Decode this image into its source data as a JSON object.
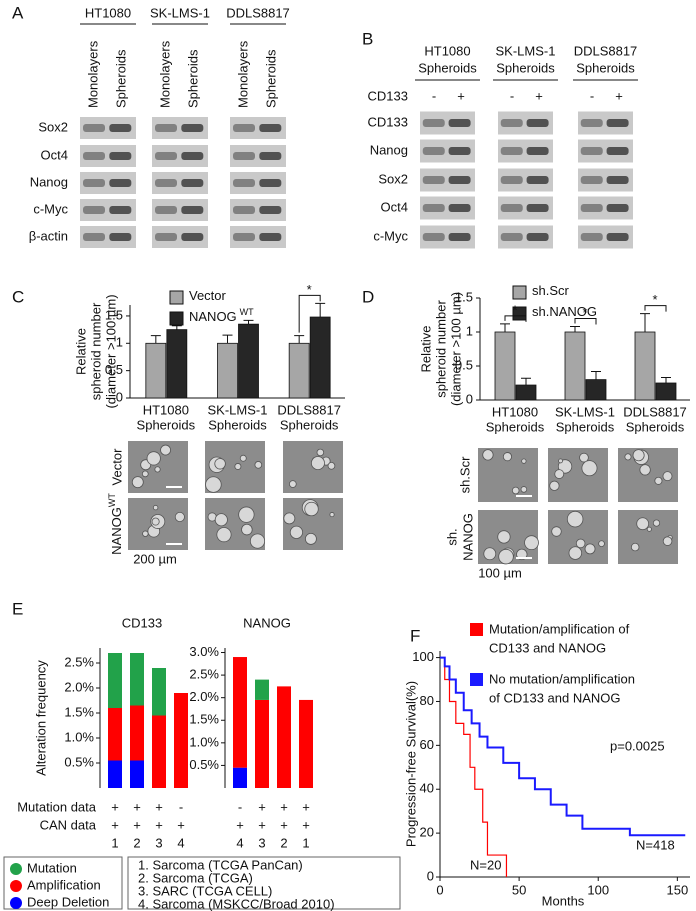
{
  "panel_a": {
    "label": "A",
    "groups": [
      "HT1080",
      "SK-LMS-1",
      "DDLS8817"
    ],
    "columns": [
      "Monolayers",
      "Spheroids"
    ],
    "rows": [
      "Sox2",
      "Oct4",
      "Nanog",
      "c-Myc",
      "β-actin"
    ]
  },
  "panel_b": {
    "label": "B",
    "groups": [
      [
        "HT1080",
        "Spheroids"
      ],
      [
        "SK-LMS-1",
        "Spheroids"
      ],
      [
        "DDLS8817",
        "Spheroids"
      ]
    ],
    "condition": "CD133",
    "condition_levels": [
      "-",
      "+"
    ],
    "rows": [
      "CD133",
      "Nanog",
      "Sox2",
      "Oct4",
      "c-Myc"
    ]
  },
  "panel_c": {
    "label": "C",
    "type": "bar",
    "y_label": [
      "Relative",
      "spheroid number",
      "(diameter >100 µm)"
    ],
    "categories": [
      [
        "HT1080",
        "Spheroids"
      ],
      [
        "SK-LMS-1",
        "Spheroids"
      ],
      [
        "DDLS8817",
        "Spheroids"
      ]
    ],
    "series": [
      {
        "name": "Vector",
        "color": "#a6a6a6",
        "values": [
          1,
          1,
          1
        ],
        "errors": [
          0.14,
          0.15,
          0.14
        ]
      },
      {
        "name": "NANOG",
        "name_sup": "WT",
        "color": "#262626",
        "values": [
          1.25,
          1.35,
          1.48
        ],
        "errors": [
          0.07,
          0.07,
          0.25
        ]
      }
    ],
    "ylim": [
      0,
      1.7
    ],
    "yticks": [
      0,
      0.5,
      1,
      1.5
    ],
    "significance": [
      null,
      null,
      "*"
    ],
    "image_rows": [
      {
        "text": "Vector"
      },
      {
        "text": "NANOG",
        "sup": "WT"
      }
    ],
    "scale_bar": "200 µm"
  },
  "panel_d": {
    "label": "D",
    "type": "bar",
    "y_label": [
      "Relative",
      "spheroid number",
      "(diameter >100 µm)"
    ],
    "categories": [
      [
        "HT1080",
        "Spheroids"
      ],
      [
        "SK-LMS-1",
        "Spheroids"
      ],
      [
        "DDLS8817",
        "Spheroids"
      ]
    ],
    "series": [
      {
        "name": "sh.Scr",
        "color": "#a6a6a6",
        "values": [
          1,
          1,
          1
        ],
        "errors": [
          0.12,
          0.08,
          0.27
        ]
      },
      {
        "name": "sh.NANOG",
        "color": "#262626",
        "values": [
          0.22,
          0.3,
          0.25
        ],
        "errors": [
          0.1,
          0.12,
          0.08
        ]
      }
    ],
    "ylim": [
      0,
      1.5
    ],
    "yticks": [
      0,
      0.5,
      1,
      1.5
    ],
    "significance": [
      "*",
      "*",
      "*"
    ],
    "image_rows": [
      {
        "text": "sh.Scr"
      },
      {
        "text": "sh.",
        "text2": "NANOG"
      }
    ],
    "scale_bar": "100 µm"
  },
  "panel_e": {
    "label": "E",
    "type": "bar",
    "y_label": "Alteration frequency",
    "alteration_types": [
      {
        "name": "Mutation",
        "color": "#22a24a"
      },
      {
        "name": "Amplification",
        "color": "#ff0000"
      },
      {
        "name": "Deep Deletion",
        "color": "#0000ff"
      }
    ],
    "row_labels": [
      "Mutation data",
      "CAN data"
    ],
    "charts": [
      {
        "title": "CD133",
        "ylim": [
          0,
          2.8
        ],
        "yticks": [
          {
            "value": 0.5,
            "label": "0.5%"
          },
          {
            "value": 1.0,
            "label": "1.0%"
          },
          {
            "value": 1.5,
            "label": "1.5%"
          },
          {
            "value": 2.0,
            "label": "2.0%"
          },
          {
            "value": 2.5,
            "label": "2.5%"
          }
        ],
        "values": [
          [
            1.1,
            1.05,
            0.95,
            0
          ],
          [
            1.05,
            1.1,
            1.45,
            1.9
          ],
          [
            0.55,
            0.55,
            0,
            0
          ]
        ],
        "mutation_data": [
          "+",
          "+",
          "+",
          "-"
        ],
        "can_data": [
          "+",
          "+",
          "+",
          "+"
        ],
        "studies": [
          1,
          2,
          3,
          4
        ]
      },
      {
        "title": "NANOG",
        "ylim": [
          0,
          3.1
        ],
        "yticks": [
          {
            "value": 0.5,
            "label": "0.5%"
          },
          {
            "value": 1.0,
            "label": "1.0%"
          },
          {
            "value": 1.5,
            "label": "1.5%"
          },
          {
            "value": 2.0,
            "label": "2.0%"
          },
          {
            "value": 2.5,
            "label": "2.5%"
          },
          {
            "value": 3.0,
            "label": "3.0%"
          }
        ],
        "values": [
          [
            0,
            0.45,
            0,
            0
          ],
          [
            2.45,
            1.95,
            2.25,
            1.95
          ],
          [
            0.45,
            0,
            0,
            0
          ]
        ],
        "mutation_data": [
          "-",
          "+",
          "+",
          "+"
        ],
        "can_data": [
          "+",
          "+",
          "+",
          "+"
        ],
        "studies": [
          4,
          3,
          2,
          1
        ]
      }
    ],
    "study_list": [
      "1.   Sarcoma (TCGA PanCan)",
      "2.   Sarcoma (TCGA)",
      "3.   SARC (TCGA CELL)",
      "4.   Sarcoma (MSKCC/Broad 2010)"
    ]
  },
  "panel_f": {
    "label": "F",
    "type": "line",
    "x_label": "Months",
    "y_label": "Progression-free Survival(%)",
    "xlim": [
      0,
      158
    ],
    "ylim": [
      0,
      103
    ],
    "xticks": [
      0,
      50,
      100,
      150
    ],
    "yticks": [
      0,
      20,
      40,
      60,
      80,
      100
    ],
    "series": [
      {
        "name": [
          "Mutation/amplification of",
          "CD133 and NANOG"
        ],
        "color": "#ff0000",
        "count_label": "N=20",
        "x": [
          0,
          3,
          3,
          6,
          6,
          10,
          10,
          15,
          15,
          19,
          19,
          22,
          22,
          27,
          27,
          30,
          30,
          42,
          42
        ],
        "y": [
          100,
          100,
          90,
          90,
          80,
          80,
          70,
          70,
          65,
          65,
          50,
          50,
          40,
          40,
          25,
          25,
          10,
          10,
          0
        ]
      },
      {
        "name": [
          "No mutation/amplification",
          "of CD133 and NANOG"
        ],
        "color": "#1a1aff",
        "count_label": "N=418",
        "x": [
          0,
          3,
          3,
          6,
          6,
          10,
          10,
          15,
          15,
          20,
          20,
          25,
          25,
          30,
          30,
          40,
          40,
          50,
          50,
          60,
          60,
          70,
          70,
          80,
          80,
          90,
          90,
          120,
          120,
          155
        ],
        "y": [
          100,
          100,
          96,
          96,
          90,
          90,
          84,
          84,
          76,
          76,
          70,
          70,
          64,
          64,
          59,
          59,
          52,
          52,
          45,
          45,
          40,
          40,
          33,
          33,
          28,
          28,
          22,
          22,
          19,
          19
        ]
      }
    ],
    "p_value": "p=0.0025"
  }
}
